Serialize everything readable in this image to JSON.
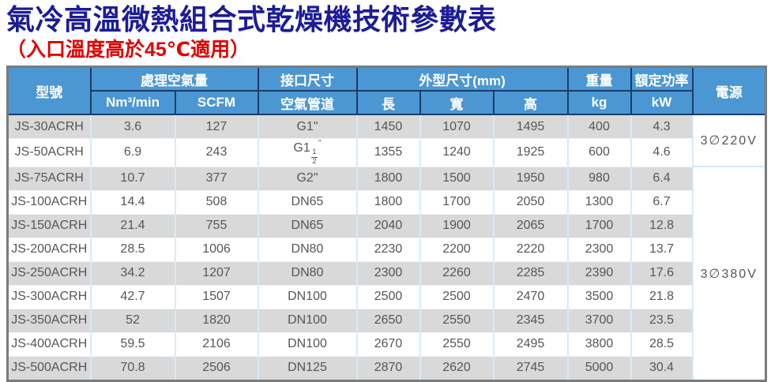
{
  "title": "氣冷高溫微熱組合式乾燥機技術參數表",
  "subtitle": "（入口溫度高於45℃適用）",
  "colors": {
    "title_navy": "#1c1c96",
    "subtitle_red": "#e00000",
    "header_blue": "#4b97d3",
    "header_border_navy": "#1c3c68",
    "stripe_gray": "#d9d9d9",
    "divider_light_blue": "#d7ebfa",
    "outer_border_gray": "#7b7b7b",
    "body_text_gray": "#565656"
  },
  "table": {
    "headers": {
      "model": "型號",
      "air_volume": "處理空氣量",
      "air_volume_units": [
        "Nm³/min",
        "SCFM"
      ],
      "port_size": "接口尺寸",
      "port_sub": "空氣管道",
      "dimensions": "外型尺寸(mm)",
      "dim_sub": [
        "長",
        "寬",
        "高"
      ],
      "weight": "重量",
      "weight_unit": "kg",
      "rated_power": "額定功率",
      "rated_power_unit": "kW",
      "power_supply": "電源"
    },
    "rows": [
      {
        "model": "JS-30ACRH",
        "nm3_min": "3.6",
        "scfm": "127",
        "pipe": "G1\"",
        "length": "1450",
        "width": "1070",
        "height": "1495",
        "kg": "400",
        "kw": "4.3"
      },
      {
        "model": "JS-50ACRH",
        "nm3_min": "6.9",
        "scfm": "243",
        "pipe": "G1",
        "pipe_frac": [
          "1",
          "2"
        ],
        "pipe_suffix": "\"",
        "length": "1355",
        "width": "1240",
        "height": "1925",
        "kg": "600",
        "kw": "4.6"
      },
      {
        "model": "JS-75ACRH",
        "nm3_min": "10.7",
        "scfm": "377",
        "pipe": "G2\"",
        "length": "1800",
        "width": "1500",
        "height": "1950",
        "kg": "980",
        "kw": "6.4"
      },
      {
        "model": "JS-100ACRH",
        "nm3_min": "14.4",
        "scfm": "508",
        "pipe": "DN65",
        "length": "1800",
        "width": "1700",
        "height": "2050",
        "kg": "1300",
        "kw": "6.7"
      },
      {
        "model": "JS-150ACRH",
        "nm3_min": "21.4",
        "scfm": "755",
        "pipe": "DN65",
        "length": "2040",
        "width": "1900",
        "height": "2065",
        "kg": "1700",
        "kw": "12.8"
      },
      {
        "model": "JS-200ACRH",
        "nm3_min": "28.5",
        "scfm": "1006",
        "pipe": "DN80",
        "length": "2230",
        "width": "2200",
        "height": "2220",
        "kg": "2300",
        "kw": "13.7"
      },
      {
        "model": "JS-250ACRH",
        "nm3_min": "34.2",
        "scfm": "1207",
        "pipe": "DN80",
        "length": "2300",
        "width": "2260",
        "height": "2285",
        "kg": "2390",
        "kw": "17.6"
      },
      {
        "model": "JS-300ACRH",
        "nm3_min": "42.7",
        "scfm": "1507",
        "pipe": "DN100",
        "length": "2500",
        "width": "2500",
        "height": "2470",
        "kg": "3500",
        "kw": "21.8"
      },
      {
        "model": "JS-350ACRH",
        "nm3_min": "52",
        "scfm": "1820",
        "pipe": "DN100",
        "length": "2650",
        "width": "2550",
        "height": "2345",
        "kg": "3700",
        "kw": "23.5"
      },
      {
        "model": "JS-400ACRH",
        "nm3_min": "59.5",
        "scfm": "2106",
        "pipe": "DN100",
        "length": "2670",
        "width": "2550",
        "height": "2495",
        "kg": "3800",
        "kw": "28.5"
      },
      {
        "model": "JS-500ACRH",
        "nm3_min": "70.8",
        "scfm": "2506",
        "pipe": "DN125",
        "length": "2870",
        "width": "2620",
        "height": "2745",
        "kg": "5000",
        "kw": "30.4"
      }
    ],
    "power_groups": [
      {
        "label": "3∅220V",
        "rows": 2
      },
      {
        "label": "3∅380V",
        "rows": 9
      }
    ]
  }
}
